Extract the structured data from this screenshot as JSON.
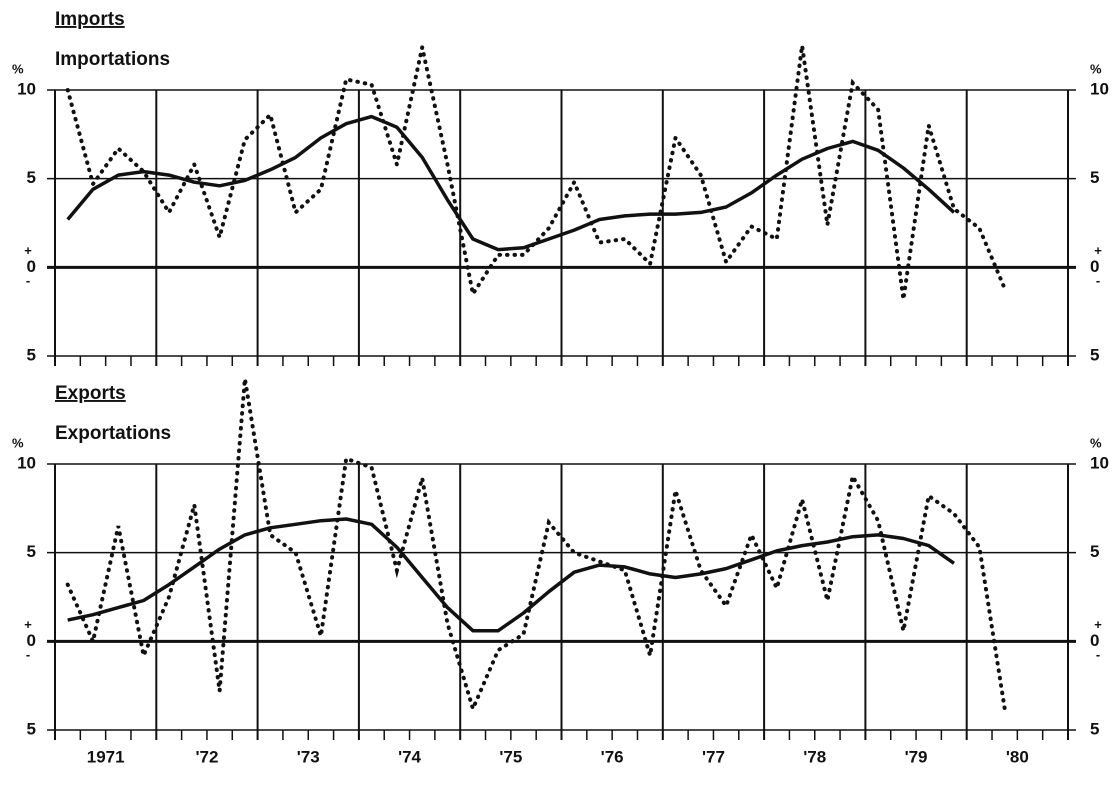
{
  "chart_data": [
    {
      "type": "line",
      "title": "Imports",
      "subtitle": "Importations",
      "unit": "%",
      "zero_signs": [
        "+",
        "-"
      ],
      "x": [
        1971.125,
        1971.375,
        1971.625,
        1971.875,
        1972.125,
        1972.375,
        1972.625,
        1972.875,
        1973.125,
        1973.375,
        1973.625,
        1973.875,
        1974.125,
        1974.375,
        1974.625,
        1974.875,
        1975.125,
        1975.375,
        1975.625,
        1975.875,
        1976.125,
        1976.375,
        1976.625,
        1976.875,
        1977.125,
        1977.375,
        1977.625,
        1977.875,
        1978.125,
        1978.375,
        1978.625,
        1978.875,
        1979.125,
        1979.375,
        1979.625,
        1979.875,
        1980.125,
        1980.375
      ],
      "xlim": [
        1971,
        1981
      ],
      "xticks": [
        1971,
        1972,
        1973,
        1974,
        1975,
        1976,
        1977,
        1978,
        1979,
        1980,
        1981
      ],
      "xminor_step": 0.25,
      "ylim": [
        -5,
        10
      ],
      "yticks": [
        {
          "value": -5,
          "label": "5"
        },
        0,
        5,
        10
      ],
      "series": [
        {
          "color": "#111111",
          "style": "dotted",
          "values": [
            10,
            4.7,
            6.7,
            5.4,
            3.1,
            5.8,
            1.7,
            7.2,
            8.6,
            3.1,
            4.4,
            10.6,
            10.3,
            5.8,
            12.4,
            5.8,
            -1.5,
            0.7,
            0.7,
            2.2,
            4.8,
            1.4,
            1.6,
            0.2,
            7.3,
            5.2,
            0.3,
            2.3,
            1.6,
            12.5,
            2.4,
            10.4,
            8.9,
            -1.8,
            8.0,
            3.3,
            2.2,
            -1.2
          ]
        },
        {
          "color": "#111111",
          "style": "solid",
          "values": [
            2.7,
            4.4,
            5.2,
            5.4,
            5.2,
            4.8,
            4.6,
            4.9,
            5.5,
            6.2,
            7.3,
            8.1,
            8.5,
            7.9,
            6.2,
            3.8,
            1.6,
            1.0,
            1.1,
            1.6,
            2.1,
            2.7,
            2.9,
            3.0,
            3.0,
            3.1,
            3.4,
            4.2,
            5.2,
            6.1,
            6.7,
            7.1,
            6.6,
            5.6,
            4.4,
            3.1,
            null,
            null
          ]
        }
      ]
    },
    {
      "type": "line",
      "title": "Exports",
      "subtitle": "Exportations",
      "unit": "%",
      "zero_signs": [
        "+",
        "-"
      ],
      "x": [
        1971.125,
        1971.375,
        1971.625,
        1971.875,
        1972.125,
        1972.375,
        1972.625,
        1972.875,
        1973.125,
        1973.375,
        1973.625,
        1973.875,
        1974.125,
        1974.375,
        1974.625,
        1974.875,
        1975.125,
        1975.375,
        1975.625,
        1975.875,
        1976.125,
        1976.375,
        1976.625,
        1976.875,
        1977.125,
        1977.375,
        1977.625,
        1977.875,
        1978.125,
        1978.375,
        1978.625,
        1978.875,
        1979.125,
        1979.375,
        1979.625,
        1979.875,
        1980.125,
        1980.375
      ],
      "xlim": [
        1971,
        1981
      ],
      "xticks": [
        1971,
        1972,
        1973,
        1974,
        1975,
        1976,
        1977,
        1978,
        1979,
        1980,
        1981
      ],
      "xminor_step": 0.25,
      "year_labels": [
        {
          "value": 1971.5,
          "label": "1971"
        },
        {
          "value": 1972.5,
          "label": "'72"
        },
        {
          "value": 1973.5,
          "label": "'73"
        },
        {
          "value": 1974.5,
          "label": "'74"
        },
        {
          "value": 1975.5,
          "label": "'75"
        },
        {
          "value": 1976.5,
          "label": "'76"
        },
        {
          "value": 1977.5,
          "label": "'77"
        },
        {
          "value": 1978.5,
          "label": "'78"
        },
        {
          "value": 1979.5,
          "label": "'79"
        },
        {
          "value": 1980.5,
          "label": "'80"
        }
      ],
      "ylim": [
        -5,
        10
      ],
      "yticks": [
        {
          "value": -5,
          "label": "5"
        },
        0,
        5,
        10
      ],
      "series": [
        {
          "color": "#111111",
          "style": "dotted",
          "values": [
            3.2,
            0.0,
            6.5,
            -0.8,
            2.5,
            7.7,
            -2.8,
            14.8,
            6.0,
            5.0,
            0.3,
            10.3,
            9.8,
            4.0,
            9.2,
            1.0,
            -3.8,
            -0.5,
            0.4,
            6.7,
            5.0,
            4.5,
            4.0,
            -0.8,
            8.5,
            4.0,
            2.0,
            6.0,
            3.0,
            8.0,
            2.3,
            9.3,
            6.8,
            0.6,
            8.2,
            7.2,
            5.3,
            -3.8
          ]
        },
        {
          "color": "#111111",
          "style": "solid",
          "values": [
            1.2,
            1.5,
            1.9,
            2.3,
            3.2,
            4.2,
            5.2,
            6.0,
            6.4,
            6.6,
            6.8,
            6.9,
            6.6,
            5.3,
            3.6,
            1.9,
            0.6,
            0.6,
            1.6,
            2.8,
            3.9,
            4.3,
            4.2,
            3.8,
            3.6,
            3.8,
            4.1,
            4.6,
            5.1,
            5.4,
            5.6,
            5.9,
            6.0,
            5.8,
            5.4,
            4.4,
            null,
            null
          ]
        }
      ]
    }
  ]
}
